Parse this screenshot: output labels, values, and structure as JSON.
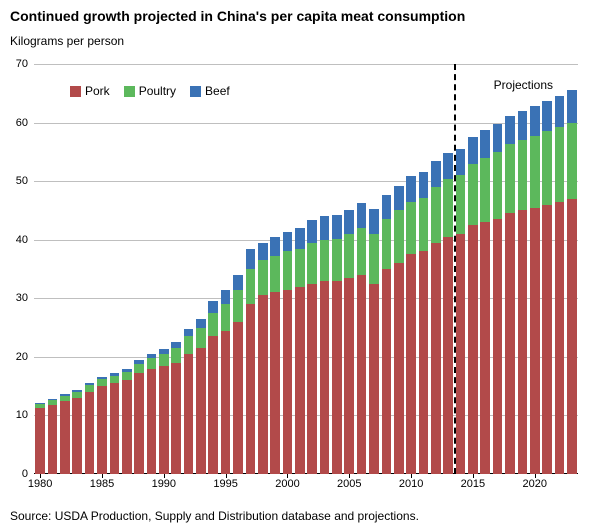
{
  "title": "Continued growth projected in China's per capita meat consumption",
  "y_axis_label": "Kilograms per person",
  "source": "Source: USDA Production, Supply and Distribution database and projections.",
  "projections_label": "Projections",
  "legend": [
    {
      "label": "Pork",
      "color": "#b24a4a"
    },
    {
      "label": "Poultry",
      "color": "#5cb85c"
    },
    {
      "label": "Beef",
      "color": "#3a72b5"
    }
  ],
  "chart": {
    "type": "stacked-bar",
    "background_color": "#ffffff",
    "grid_color": "#bfbfbf",
    "axis_color": "#000000",
    "ylim": [
      0,
      70
    ],
    "ytick_step": 10,
    "bar_gap_ratio": 0.22,
    "projection_divider_after_year": 2013,
    "xtick_years": [
      1980,
      1985,
      1990,
      1995,
      2000,
      2005,
      2010,
      2015,
      2020
    ],
    "years": [
      1980,
      1981,
      1982,
      1983,
      1984,
      1985,
      1986,
      1987,
      1988,
      1989,
      1990,
      1991,
      1992,
      1993,
      1994,
      1995,
      1996,
      1997,
      1998,
      1999,
      2000,
      2001,
      2002,
      2003,
      2004,
      2005,
      2006,
      2007,
      2008,
      2009,
      2010,
      2011,
      2012,
      2013,
      2014,
      2015,
      2016,
      2017,
      2018,
      2019,
      2020,
      2021,
      2022,
      2023
    ],
    "series": {
      "pork": [
        11.2,
        11.8,
        12.5,
        13.0,
        14.0,
        15.0,
        15.5,
        16.0,
        17.2,
        18.0,
        18.5,
        19.0,
        20.5,
        21.5,
        23.5,
        24.5,
        26.0,
        29.0,
        30.5,
        31.0,
        31.5,
        32.0,
        32.5,
        33.0,
        33.0,
        33.5,
        34.0,
        32.5,
        35.0,
        36.0,
        37.5,
        38.0,
        39.5,
        40.5,
        41.0,
        42.5,
        43.0,
        43.5,
        44.5,
        45.0,
        45.5,
        46.0,
        46.5,
        47.0
      ],
      "poultry": [
        0.7,
        0.8,
        0.9,
        1.0,
        1.2,
        1.3,
        1.3,
        1.5,
        1.6,
        1.8,
        2.0,
        2.5,
        3.0,
        3.5,
        4.0,
        4.5,
        5.5,
        6.0,
        6.0,
        6.2,
        6.5,
        6.5,
        7.0,
        7.0,
        7.2,
        7.5,
        8.0,
        8.5,
        8.5,
        9.0,
        9.0,
        9.2,
        9.5,
        9.8,
        10.0,
        10.5,
        11.0,
        11.5,
        11.8,
        12.0,
        12.2,
        12.5,
        12.8,
        13.0
      ],
      "beef": [
        0.2,
        0.2,
        0.2,
        0.3,
        0.3,
        0.3,
        0.4,
        0.5,
        0.6,
        0.7,
        0.8,
        1.0,
        1.2,
        1.5,
        2.0,
        2.5,
        2.5,
        3.5,
        3.0,
        3.3,
        3.3,
        3.5,
        3.8,
        4.0,
        4.0,
        4.0,
        4.2,
        4.2,
        4.2,
        4.2,
        4.3,
        4.3,
        4.5,
        4.5,
        4.5,
        4.6,
        4.7,
        4.8,
        4.9,
        5.0,
        5.1,
        5.2,
        5.3,
        5.5
      ]
    },
    "series_order": [
      "pork",
      "poultry",
      "beef"
    ],
    "series_colors": {
      "pork": "#b24a4a",
      "poultry": "#5cb85c",
      "beef": "#3a72b5"
    },
    "font_size_axis": 11,
    "font_size_title": 14,
    "font_size_label": 12
  }
}
